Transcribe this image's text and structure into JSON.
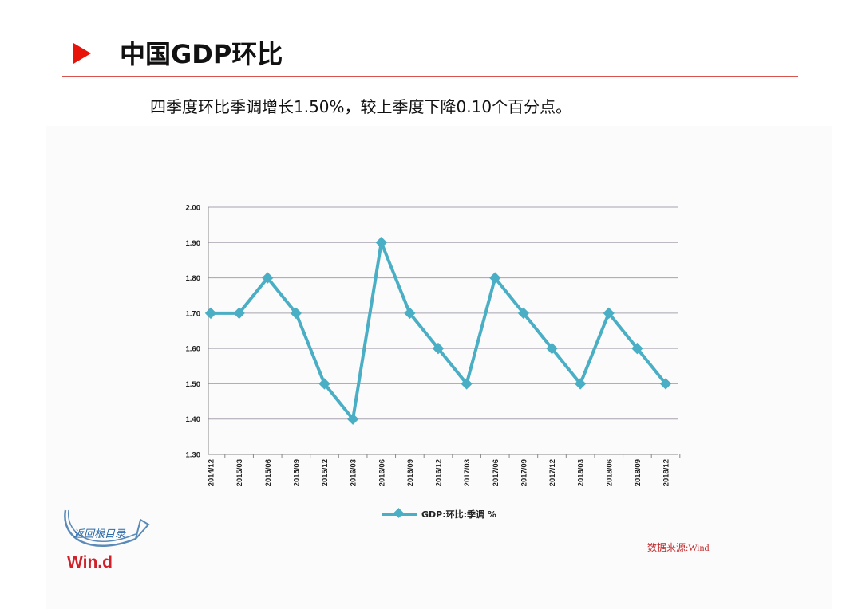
{
  "slide": {
    "title": "中国GDP环比",
    "subtitle": "四季度环比季调增长1.50%，较上季度下降0.10个百分点。",
    "source": "数据来源:Wind",
    "logo_text": "Win.d",
    "logo_script": "返回根目录"
  },
  "colors": {
    "accent": "#e8140a",
    "rule": "#d9534f",
    "series": "#4aaec4",
    "grid": "#a9a2b0",
    "source_text": "#c0282a"
  },
  "icons": {
    "title_marker": "play-triangle-icon",
    "logo_arrow": "curved-arrow-icon"
  },
  "chart_data": {
    "type": "line",
    "categories": [
      "2014/12",
      "2015/03",
      "2015/06",
      "2015/09",
      "2015/12",
      "2016/03",
      "2016/06",
      "2016/09",
      "2016/12",
      "2017/03",
      "2017/06",
      "2017/09",
      "2017/12",
      "2018/03",
      "2018/06",
      "2018/09",
      "2018/12"
    ],
    "series": [
      {
        "name": "GDP:环比:季调 %",
        "values": [
          1.7,
          1.7,
          1.8,
          1.7,
          1.5,
          1.4,
          1.9,
          1.7,
          1.6,
          1.5,
          1.8,
          1.7,
          1.6,
          1.5,
          1.7,
          1.6,
          1.5
        ],
        "marker": "diamond"
      }
    ],
    "ylim": [
      1.3,
      2.0
    ],
    "yticks": [
      "1.30",
      "1.40",
      "1.50",
      "1.60",
      "1.70",
      "1.80",
      "1.90",
      "2.00"
    ],
    "grid": true,
    "legend": "bottom"
  }
}
